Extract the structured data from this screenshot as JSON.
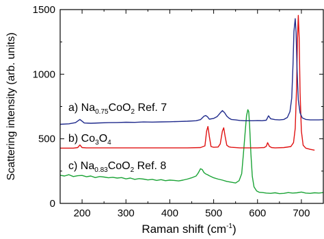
{
  "chart_data": {
    "type": "line",
    "xlabel": "Raman shift (cm",
    "xlabel_sup": "-1",
    "xlabel_close": ")",
    "ylabel": "Scattering intensity (arb. units)",
    "xlim": [
      150,
      750
    ],
    "ylim": [
      0,
      1500
    ],
    "xticks": [
      200,
      300,
      400,
      500,
      600,
      700
    ],
    "yticks": [
      0,
      500,
      1000,
      1500
    ],
    "grid": false,
    "series": [
      {
        "name": "Na0.75CoO2 Ref. 7",
        "label_parts": [
          {
            "t": "a) Na",
            "sub": false
          },
          {
            "t": "0.75",
            "sub": true
          },
          {
            "t": "CoO",
            "sub": false
          },
          {
            "t": "2",
            "sub": true
          },
          {
            "t": " Ref. 7",
            "sub": false
          }
        ],
        "color": "#1f2a8c",
        "x": [
          150,
          170,
          185,
          195,
          205,
          220,
          240,
          260,
          280,
          300,
          320,
          340,
          360,
          380,
          400,
          420,
          440,
          460,
          470,
          478,
          482,
          486,
          490,
          500,
          508,
          515,
          520,
          525,
          530,
          535,
          540,
          550,
          560,
          570,
          580,
          590,
          600,
          610,
          620,
          625,
          630,
          640,
          650,
          660,
          668,
          674,
          678,
          681,
          683,
          686,
          688,
          690,
          693,
          697,
          702,
          710,
          720,
          730,
          740,
          750
        ],
        "y": [
          612,
          616,
          625,
          650,
          622,
          620,
          623,
          625,
          626,
          628,
          627,
          630,
          629,
          631,
          632,
          634,
          636,
          640,
          648,
          675,
          680,
          670,
          652,
          658,
          672,
          700,
          718,
          702,
          675,
          660,
          650,
          646,
          642,
          640,
          640,
          640,
          641,
          640,
          644,
          678,
          655,
          648,
          646,
          650,
          665,
          710,
          815,
          1080,
          1330,
          1430,
          1320,
          1050,
          800,
          700,
          662,
          650,
          646,
          646,
          646,
          648
        ]
      },
      {
        "name": "Co3O4",
        "label_parts": [
          {
            "t": "b) Co",
            "sub": false
          },
          {
            "t": "3",
            "sub": true
          },
          {
            "t": "O",
            "sub": false
          },
          {
            "t": "4",
            "sub": true
          }
        ],
        "color": "#e01010",
        "x": [
          150,
          180,
          190,
          195,
          200,
          210,
          240,
          280,
          320,
          360,
          400,
          440,
          470,
          480,
          484,
          487,
          490,
          494,
          500,
          510,
          515,
          520,
          523,
          526,
          530,
          535,
          540,
          560,
          580,
          600,
          615,
          620,
          623,
          627,
          632,
          640,
          660,
          676,
          682,
          686,
          689,
          691,
          693,
          695,
          697,
          700,
          704,
          710,
          720,
          730
        ],
        "y": [
          428,
          428,
          432,
          452,
          432,
          430,
          430,
          430,
          430,
          430,
          430,
          430,
          432,
          445,
          560,
          595,
          520,
          440,
          434,
          436,
          460,
          560,
          585,
          520,
          450,
          438,
          434,
          430,
          430,
          430,
          432,
          442,
          470,
          442,
          432,
          430,
          432,
          440,
          470,
          580,
          900,
          1250,
          1455,
          1280,
          860,
          560,
          450,
          428,
          418,
          412
        ]
      },
      {
        "name": "Na0.83CoO2 Ref. 8",
        "label_parts": [
          {
            "t": "c) Na",
            "sub": false
          },
          {
            "t": "0.83",
            "sub": true
          },
          {
            "t": "CoO",
            "sub": false
          },
          {
            "t": "2",
            "sub": true
          },
          {
            "t": " Ref. 8",
            "sub": false
          }
        ],
        "color": "#1aa335",
        "x": [
          150,
          160,
          170,
          180,
          190,
          200,
          210,
          220,
          230,
          240,
          250,
          260,
          270,
          280,
          290,
          300,
          310,
          320,
          330,
          340,
          350,
          360,
          370,
          380,
          390,
          400,
          410,
          420,
          430,
          440,
          450,
          460,
          465,
          470,
          474,
          478,
          482,
          486,
          490,
          495,
          500,
          510,
          520,
          530,
          540,
          550,
          558,
          564,
          568,
          572,
          575,
          578,
          580,
          582,
          585,
          588,
          592,
          598,
          604,
          612,
          620,
          630,
          640,
          650,
          660,
          670,
          680,
          690,
          700,
          710,
          720,
          730,
          740,
          750
        ],
        "y": [
          218,
          212,
          222,
          208,
          214,
          216,
          206,
          212,
          200,
          208,
          204,
          198,
          202,
          196,
          200,
          190,
          196,
          186,
          192,
          188,
          182,
          186,
          178,
          184,
          176,
          180,
          178,
          174,
          180,
          188,
          198,
          212,
          236,
          268,
          262,
          238,
          228,
          222,
          214,
          206,
          198,
          188,
          180,
          170,
          164,
          158,
          176,
          230,
          390,
          560,
          680,
          725,
          710,
          600,
          380,
          210,
          128,
          96,
          86,
          84,
          80,
          78,
          82,
          76,
          78,
          84,
          80,
          82,
          88,
          80,
          78,
          82,
          80,
          84
        ]
      }
    ]
  }
}
